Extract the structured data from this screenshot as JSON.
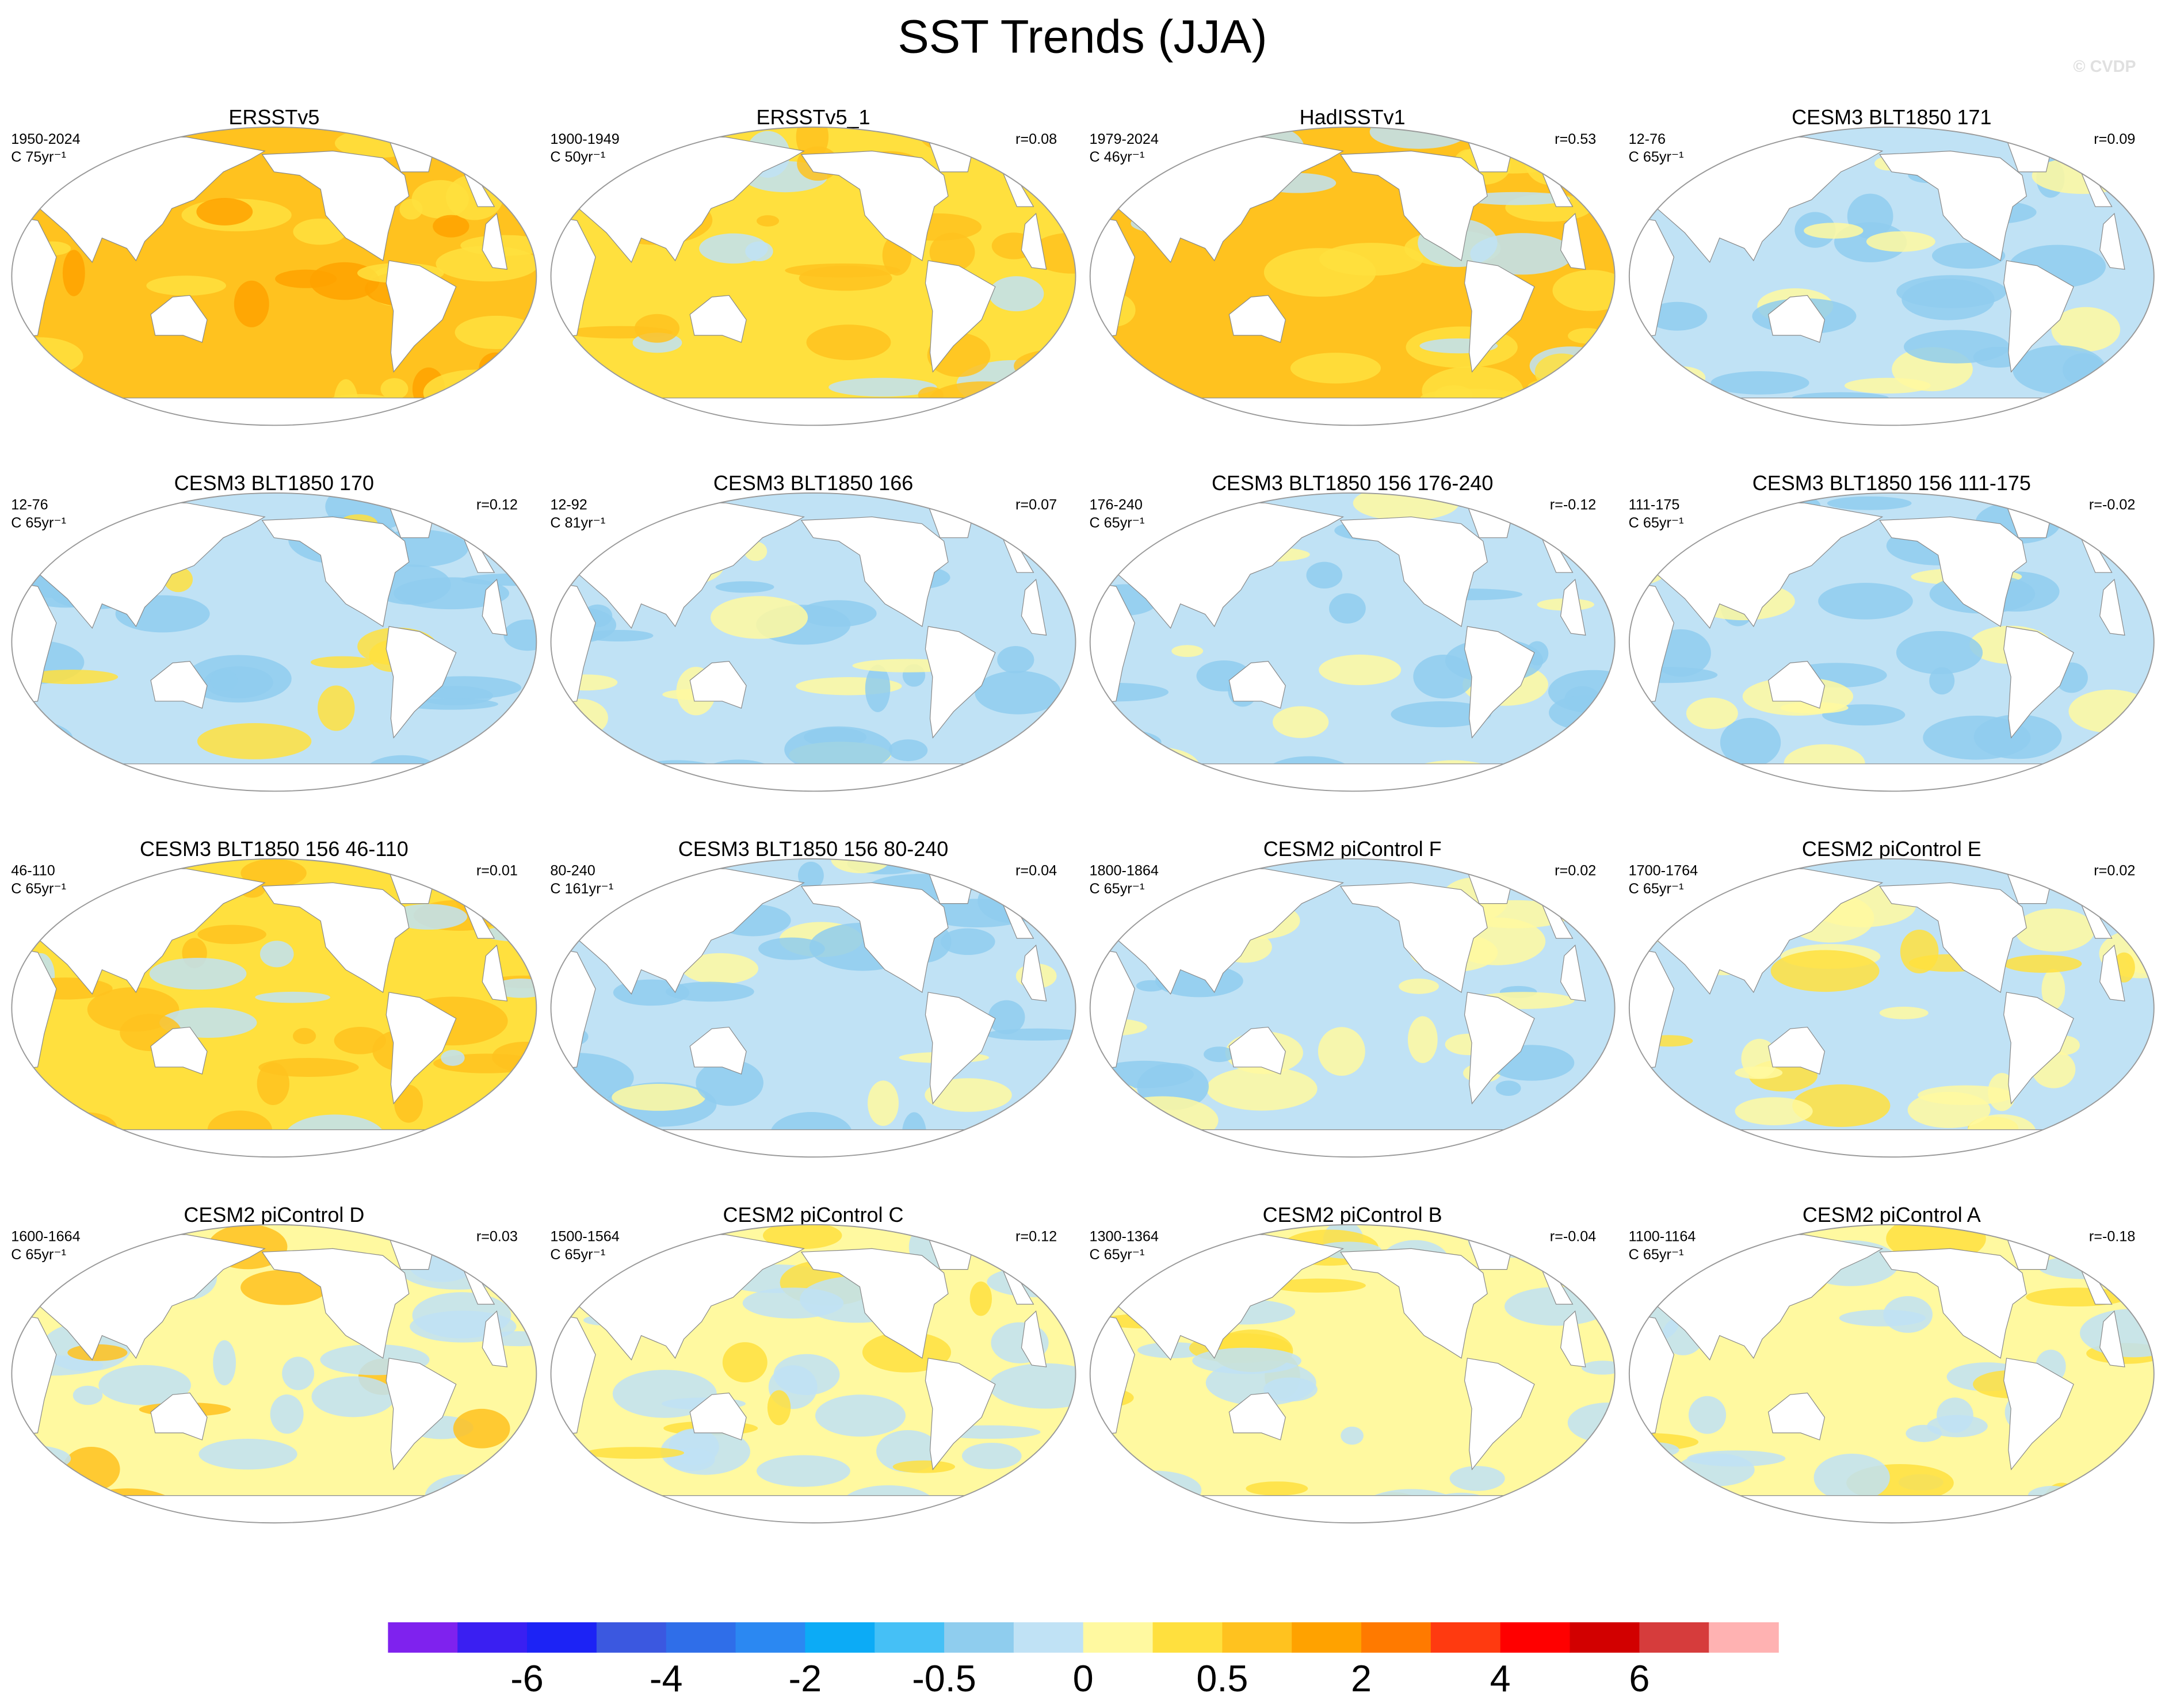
{
  "title": "SST Trends (JJA)",
  "watermark": "© CVDP",
  "panels": [
    {
      "title": "ERSSTv5",
      "period": "1950-2024",
      "length": "C 75yr⁻¹"
    },
    {
      "title": "ERSSTv5_1",
      "period": "1900-1949",
      "length": "C 50yr⁻¹",
      "r": "r=0.08"
    },
    {
      "title": "HadISSTv1",
      "period": "1979-2024",
      "length": "C 46yr⁻¹",
      "r": "r=0.53"
    },
    {
      "title": "CESM3 BLT1850 171",
      "period": "12-76",
      "length": "C 65yr⁻¹",
      "r": "r=0.09"
    },
    {
      "title": "CESM3 BLT1850 170",
      "period": "12-76",
      "length": "C 65yr⁻¹",
      "r": "r=0.12"
    },
    {
      "title": "CESM3 BLT1850 166",
      "period": "12-92",
      "length": "C 81yr⁻¹",
      "r": "r=0.07"
    },
    {
      "title": "CESM3 BLT1850 156 176-240",
      "period": "176-240",
      "length": "C 65yr⁻¹",
      "r": "r=-0.12"
    },
    {
      "title": "CESM3 BLT1850 156 111-175",
      "period": "111-175",
      "length": "C 65yr⁻¹",
      "r": "r=-0.02"
    },
    {
      "title": "CESM3 BLT1850 156 46-110",
      "period": "46-110",
      "length": "C 65yr⁻¹",
      "r": "r=0.01"
    },
    {
      "title": "CESM3 BLT1850 156 80-240",
      "period": "80-240",
      "length": "C 161yr⁻¹",
      "r": "r=0.04"
    },
    {
      "title": "CESM2 piControl F",
      "period": "1800-1864",
      "length": "C 65yr⁻¹",
      "r": "r=0.02"
    },
    {
      "title": "CESM2 piControl E",
      "period": "1700-1764",
      "length": "C 65yr⁻¹",
      "r": "r=0.02"
    },
    {
      "title": "CESM2 piControl D",
      "period": "1600-1664",
      "length": "C 65yr⁻¹",
      "r": "r=0.03"
    },
    {
      "title": "CESM2 piControl C",
      "period": "1500-1564",
      "length": "C 65yr⁻¹",
      "r": "r=0.12"
    },
    {
      "title": "CESM2 piControl B",
      "period": "1300-1364",
      "length": "C 65yr⁻¹",
      "r": "r=-0.04"
    },
    {
      "title": "CESM2 piControl A",
      "period": "1100-1164",
      "length": "C 65yr⁻¹",
      "r": "r=-0.18"
    }
  ],
  "colorbar": {
    "colors": [
      "#7f22ee",
      "#3a1ff2",
      "#1c23f5",
      "#3b58e0",
      "#2f6ee9",
      "#2b88f2",
      "#0cabf6",
      "#45c0f6",
      "#8fcdee",
      "#c0e2f5",
      "#fff9a0",
      "#ffe03e",
      "#ffc21f",
      "#ffa200",
      "#ff7a00",
      "#ff3a10",
      "#ff0000",
      "#d20000",
      "#d63c3c",
      "#ffb2b2"
    ],
    "labels": [
      -6,
      -4,
      -2,
      -0.5,
      0,
      0.5,
      2,
      4,
      6
    ]
  }
}
